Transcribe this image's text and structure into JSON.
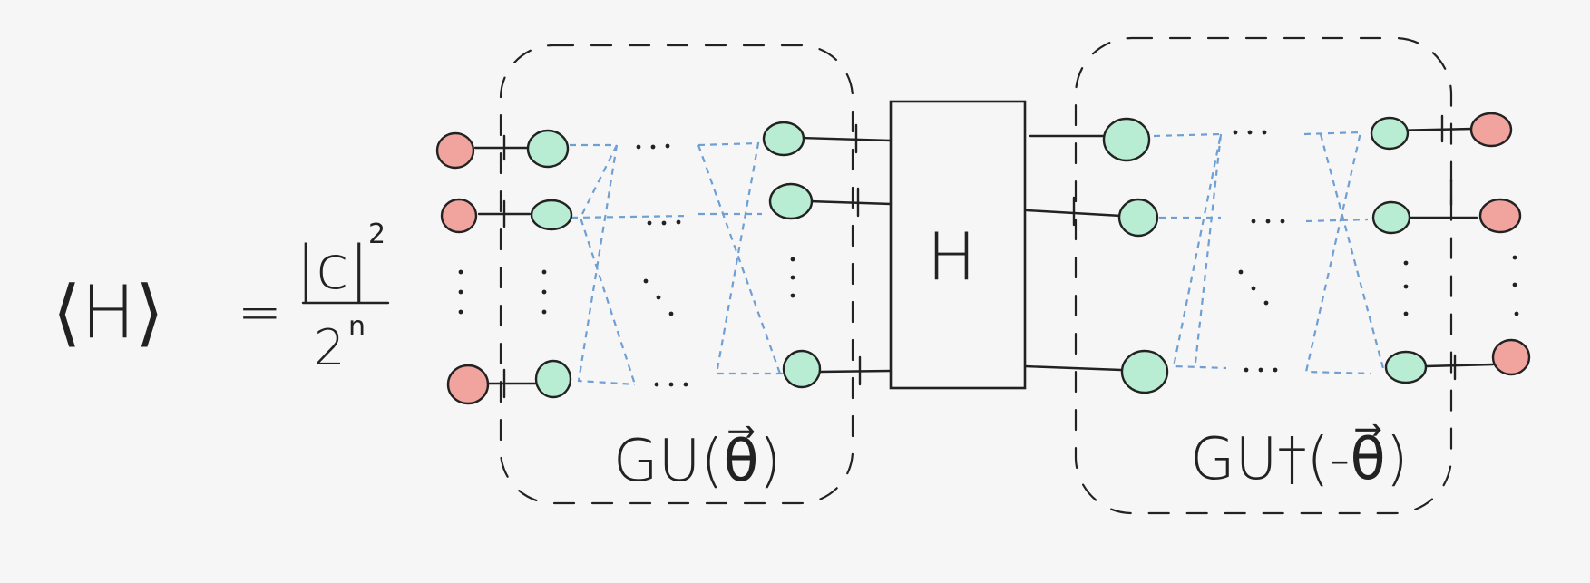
{
  "equation": {
    "lhs": "⟨H⟩",
    "equals": "=",
    "numerator": "|c|",
    "numerator_exp": "2",
    "denominator": "2",
    "denominator_exp": "n"
  },
  "left_block": {
    "label": "GU(θ⃗)"
  },
  "operator": {
    "label": "H"
  },
  "right_block": {
    "label": "GU†(-θ⃗)"
  },
  "colors": {
    "red_node": "#f1a39e",
    "green_node": "#b8ecd3",
    "dashed_link": "#6f9fd3",
    "ink": "#222222",
    "background": "#f6f6f6"
  }
}
